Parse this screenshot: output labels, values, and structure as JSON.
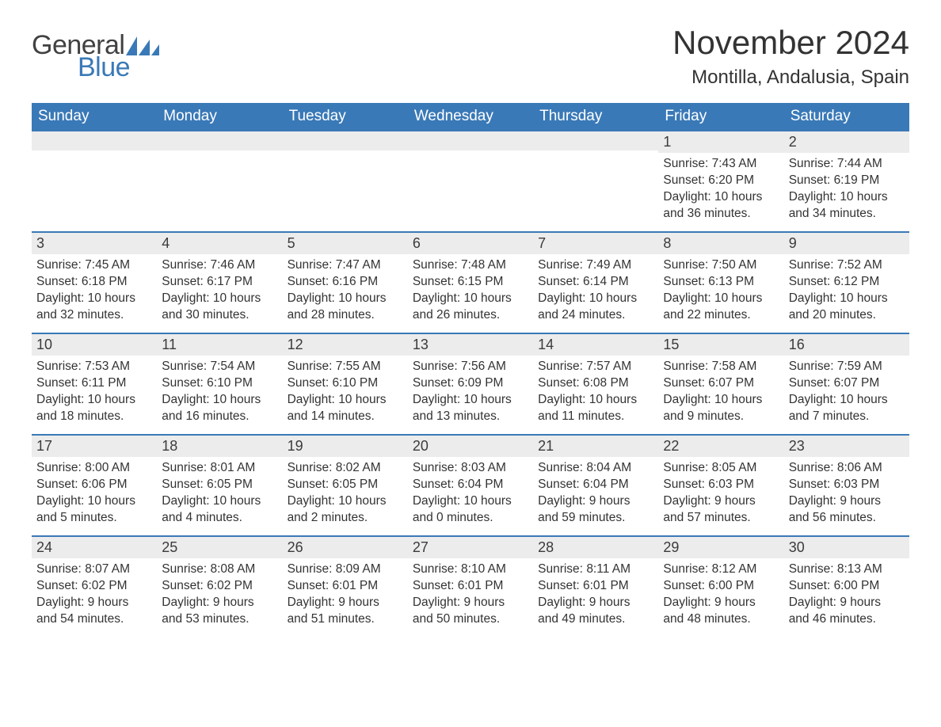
{
  "brand": {
    "part1": "General",
    "part2": "Blue",
    "text_color": "#414141",
    "accent_color": "#3a79b7"
  },
  "title": "November 2024",
  "location": "Montilla, Andalusia, Spain",
  "colors": {
    "header_bg": "#3a79b7",
    "header_text": "#ffffff",
    "daynum_bg": "#ececec",
    "daynum_border": "#3a79b7",
    "body_text": "#333333",
    "page_bg": "#ffffff"
  },
  "day_headers": [
    "Sunday",
    "Monday",
    "Tuesday",
    "Wednesday",
    "Thursday",
    "Friday",
    "Saturday"
  ],
  "labels": {
    "sunrise": "Sunrise:",
    "sunset": "Sunset:",
    "daylight": "Daylight:"
  },
  "weeks": [
    [
      null,
      null,
      null,
      null,
      null,
      {
        "n": "1",
        "sr": "7:43 AM",
        "ss": "6:20 PM",
        "dl": "10 hours and 36 minutes."
      },
      {
        "n": "2",
        "sr": "7:44 AM",
        "ss": "6:19 PM",
        "dl": "10 hours and 34 minutes."
      }
    ],
    [
      {
        "n": "3",
        "sr": "7:45 AM",
        "ss": "6:18 PM",
        "dl": "10 hours and 32 minutes."
      },
      {
        "n": "4",
        "sr": "7:46 AM",
        "ss": "6:17 PM",
        "dl": "10 hours and 30 minutes."
      },
      {
        "n": "5",
        "sr": "7:47 AM",
        "ss": "6:16 PM",
        "dl": "10 hours and 28 minutes."
      },
      {
        "n": "6",
        "sr": "7:48 AM",
        "ss": "6:15 PM",
        "dl": "10 hours and 26 minutes."
      },
      {
        "n": "7",
        "sr": "7:49 AM",
        "ss": "6:14 PM",
        "dl": "10 hours and 24 minutes."
      },
      {
        "n": "8",
        "sr": "7:50 AM",
        "ss": "6:13 PM",
        "dl": "10 hours and 22 minutes."
      },
      {
        "n": "9",
        "sr": "7:52 AM",
        "ss": "6:12 PM",
        "dl": "10 hours and 20 minutes."
      }
    ],
    [
      {
        "n": "10",
        "sr": "7:53 AM",
        "ss": "6:11 PM",
        "dl": "10 hours and 18 minutes."
      },
      {
        "n": "11",
        "sr": "7:54 AM",
        "ss": "6:10 PM",
        "dl": "10 hours and 16 minutes."
      },
      {
        "n": "12",
        "sr": "7:55 AM",
        "ss": "6:10 PM",
        "dl": "10 hours and 14 minutes."
      },
      {
        "n": "13",
        "sr": "7:56 AM",
        "ss": "6:09 PM",
        "dl": "10 hours and 13 minutes."
      },
      {
        "n": "14",
        "sr": "7:57 AM",
        "ss": "6:08 PM",
        "dl": "10 hours and 11 minutes."
      },
      {
        "n": "15",
        "sr": "7:58 AM",
        "ss": "6:07 PM",
        "dl": "10 hours and 9 minutes."
      },
      {
        "n": "16",
        "sr": "7:59 AM",
        "ss": "6:07 PM",
        "dl": "10 hours and 7 minutes."
      }
    ],
    [
      {
        "n": "17",
        "sr": "8:00 AM",
        "ss": "6:06 PM",
        "dl": "10 hours and 5 minutes."
      },
      {
        "n": "18",
        "sr": "8:01 AM",
        "ss": "6:05 PM",
        "dl": "10 hours and 4 minutes."
      },
      {
        "n": "19",
        "sr": "8:02 AM",
        "ss": "6:05 PM",
        "dl": "10 hours and 2 minutes."
      },
      {
        "n": "20",
        "sr": "8:03 AM",
        "ss": "6:04 PM",
        "dl": "10 hours and 0 minutes."
      },
      {
        "n": "21",
        "sr": "8:04 AM",
        "ss": "6:04 PM",
        "dl": "9 hours and 59 minutes."
      },
      {
        "n": "22",
        "sr": "8:05 AM",
        "ss": "6:03 PM",
        "dl": "9 hours and 57 minutes."
      },
      {
        "n": "23",
        "sr": "8:06 AM",
        "ss": "6:03 PM",
        "dl": "9 hours and 56 minutes."
      }
    ],
    [
      {
        "n": "24",
        "sr": "8:07 AM",
        "ss": "6:02 PM",
        "dl": "9 hours and 54 minutes."
      },
      {
        "n": "25",
        "sr": "8:08 AM",
        "ss": "6:02 PM",
        "dl": "9 hours and 53 minutes."
      },
      {
        "n": "26",
        "sr": "8:09 AM",
        "ss": "6:01 PM",
        "dl": "9 hours and 51 minutes."
      },
      {
        "n": "27",
        "sr": "8:10 AM",
        "ss": "6:01 PM",
        "dl": "9 hours and 50 minutes."
      },
      {
        "n": "28",
        "sr": "8:11 AM",
        "ss": "6:01 PM",
        "dl": "9 hours and 49 minutes."
      },
      {
        "n": "29",
        "sr": "8:12 AM",
        "ss": "6:00 PM",
        "dl": "9 hours and 48 minutes."
      },
      {
        "n": "30",
        "sr": "8:13 AM",
        "ss": "6:00 PM",
        "dl": "9 hours and 46 minutes."
      }
    ]
  ]
}
